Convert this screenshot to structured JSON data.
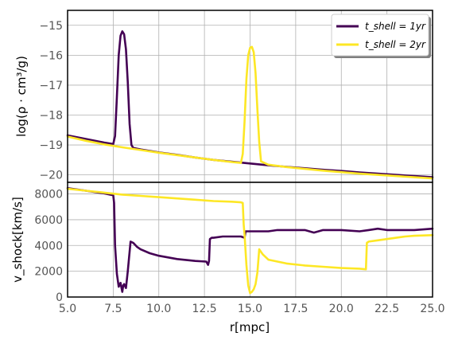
{
  "chart_data": [
    {
      "type": "line",
      "panel": "top",
      "ylabel": "log(ρ · cm³/g)",
      "xlim": [
        5.0,
        25.0
      ],
      "ylim": [
        -20.25,
        -14.5
      ],
      "yticks": [
        -20,
        -19,
        -18,
        -17,
        -16,
        -15
      ],
      "ytick_labels": [
        "−20",
        "−19",
        "−18",
        "−17",
        "−16",
        "−15"
      ],
      "grid": true,
      "legend": {
        "placement": "top-right"
      },
      "series": [
        {
          "name": "t_shell = 1yr",
          "color": "#440154",
          "x": [
            5.0,
            6.0,
            7.0,
            7.5,
            7.6,
            7.7,
            7.8,
            7.9,
            8.0,
            8.1,
            8.2,
            8.3,
            8.4,
            8.5,
            8.6,
            9.0,
            10.0,
            11.0,
            12.0,
            13.0,
            14.0,
            15.0,
            16.0,
            17.0,
            18.0,
            19.0,
            20.0,
            21.0,
            22.0,
            23.0,
            24.0,
            25.0
          ],
          "y": [
            -18.68,
            -18.8,
            -18.92,
            -18.97,
            -18.7,
            -17.4,
            -16.0,
            -15.35,
            -15.2,
            -15.3,
            -15.8,
            -16.9,
            -18.3,
            -19.0,
            -19.1,
            -19.15,
            -19.25,
            -19.33,
            -19.42,
            -19.5,
            -19.56,
            -19.62,
            -19.68,
            -19.73,
            -19.78,
            -19.83,
            -19.87,
            -19.92,
            -19.96,
            -20.0,
            -20.04,
            -20.08
          ]
        },
        {
          "name": "t_shell = 2yr",
          "color": "#fde725",
          "x": [
            5.0,
            6.0,
            7.0,
            8.0,
            9.0,
            10.0,
            11.0,
            12.0,
            13.0,
            14.0,
            14.5,
            14.6,
            14.7,
            14.8,
            14.9,
            15.0,
            15.1,
            15.2,
            15.3,
            15.4,
            15.5,
            15.6,
            16.0,
            17.0,
            18.0,
            19.0,
            20.0,
            21.0,
            22.0,
            23.0,
            24.0,
            25.0
          ],
          "y": [
            -18.72,
            -18.86,
            -18.98,
            -19.08,
            -19.17,
            -19.26,
            -19.34,
            -19.42,
            -19.5,
            -19.57,
            -19.6,
            -19.3,
            -18.2,
            -16.8,
            -16.0,
            -15.75,
            -15.72,
            -15.9,
            -16.6,
            -17.8,
            -18.9,
            -19.55,
            -19.66,
            -19.74,
            -19.8,
            -19.86,
            -19.91,
            -19.96,
            -20.0,
            -20.04,
            -20.08,
            -20.12
          ]
        }
      ]
    },
    {
      "type": "line",
      "panel": "bottom",
      "xlabel": "r[mpc]",
      "ylabel": "v_shock[km/s]",
      "xlim": [
        5.0,
        25.0
      ],
      "ylim": [
        0,
        8900
      ],
      "xticks": [
        5.0,
        7.5,
        10.0,
        12.5,
        15.0,
        17.5,
        20.0,
        22.5,
        25.0
      ],
      "xtick_labels": [
        "5.0",
        "7.5",
        "10.0",
        "12.5",
        "15.0",
        "17.5",
        "20.0",
        "22.5",
        "25.0"
      ],
      "yticks": [
        0,
        2000,
        4000,
        6000,
        8000
      ],
      "ytick_labels": [
        "0",
        "2000",
        "4000",
        "6000",
        "8000"
      ],
      "grid": true,
      "series": [
        {
          "name": "t_shell = 1yr",
          "color": "#440154",
          "x": [
            5.0,
            6.0,
            7.0,
            7.5,
            7.55,
            7.6,
            7.7,
            7.8,
            7.9,
            8.0,
            8.05,
            8.1,
            8.2,
            8.3,
            8.45,
            8.6,
            8.8,
            9.0,
            9.5,
            10.0,
            11.0,
            12.0,
            12.6,
            12.7,
            12.75,
            12.8,
            12.9,
            13.0,
            13.5,
            14.0,
            14.5,
            14.7,
            14.75,
            14.8,
            15.0,
            16.0,
            16.5,
            17.0,
            18.0,
            18.5,
            19.0,
            20.0,
            21.0,
            21.5,
            22.0,
            22.5,
            23.0,
            24.0,
            25.0
          ],
          "y": [
            8450,
            8250,
            8050,
            7900,
            7300,
            4000,
            1800,
            800,
            1100,
            400,
            900,
            1000,
            700,
            2000,
            4300,
            4200,
            3900,
            3700,
            3400,
            3200,
            2950,
            2800,
            2750,
            2500,
            2800,
            4500,
            4600,
            4600,
            4700,
            4700,
            4700,
            4600,
            5100,
            5100,
            5100,
            5100,
            5200,
            5200,
            5200,
            5000,
            5200,
            5200,
            5100,
            5200,
            5300,
            5200,
            5200,
            5200,
            5300
          ]
        },
        {
          "name": "t_shell = 2yr",
          "color": "#fde725",
          "x": [
            5.0,
            6.0,
            7.0,
            8.0,
            9.0,
            10.0,
            11.0,
            12.0,
            13.0,
            14.0,
            14.5,
            14.6,
            14.65,
            14.7,
            14.8,
            14.9,
            15.0,
            15.1,
            15.2,
            15.3,
            15.4,
            15.5,
            15.7,
            16.0,
            17.0,
            18.0,
            19.0,
            20.0,
            21.0,
            21.35,
            21.4,
            21.5,
            22.0,
            22.5,
            23.0,
            23.5,
            24.0,
            25.0
          ],
          "y": [
            8400,
            8250,
            8100,
            7950,
            7850,
            7750,
            7650,
            7550,
            7450,
            7400,
            7350,
            7300,
            5600,
            4800,
            2500,
            900,
            300,
            400,
            600,
            1000,
            1900,
            3700,
            3300,
            2900,
            2600,
            2450,
            2350,
            2250,
            2200,
            2150,
            4200,
            4300,
            4400,
            4500,
            4600,
            4700,
            4750,
            4800
          ]
        }
      ]
    }
  ]
}
